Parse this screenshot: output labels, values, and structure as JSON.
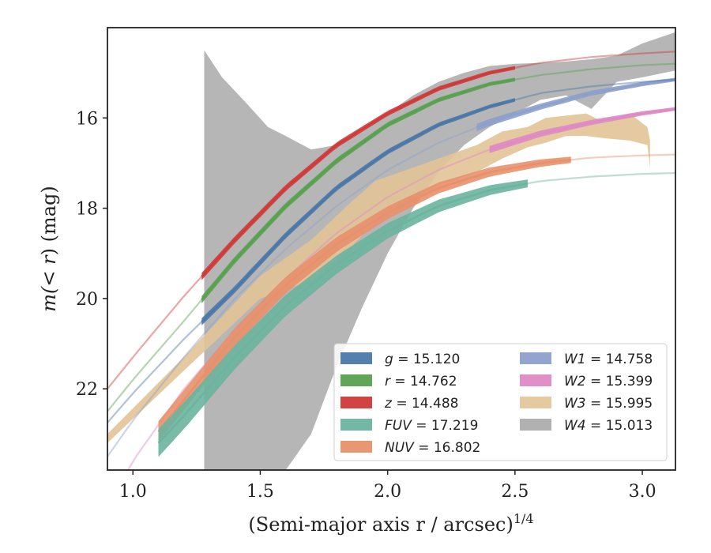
{
  "chart_data": {
    "type": "area",
    "xlabel": "(Semi-major axis r / arcsec)",
    "xlabel_exponent": "1/4",
    "ylabel": "m(< r) (mag)",
    "ylabel_prefix": "m(",
    "ylabel_var": "< r",
    "ylabel_suffix": ") (mag)",
    "xlim": [
      0.9,
      3.13
    ],
    "ylim": [
      23.8,
      14.0
    ],
    "y_inverted": true,
    "xticks": [
      "1.0",
      "1.5",
      "2.0",
      "2.5",
      "3.0"
    ],
    "xtick_values": [
      1.0,
      1.5,
      2.0,
      2.5,
      3.0
    ],
    "yticks": [
      "16",
      "18",
      "20",
      "22"
    ],
    "ytick_values": [
      16,
      18,
      20,
      22
    ],
    "grid": false,
    "legend_location": "lower-right",
    "legend_columns": 2,
    "series": [
      {
        "name": "g = 15.120",
        "label_var": "g",
        "label_value": "15.120",
        "color": "#4c78a8",
        "kind": "curve",
        "m_inf": 15.12,
        "x_start": 0.9,
        "x_solid": [
          1.27,
          2.5
        ],
        "band_half_width": 0.05,
        "x": [
          0.9,
          1.0,
          1.2,
          1.4,
          1.6,
          1.8,
          2.0,
          2.2,
          2.4,
          2.6,
          2.8,
          3.0,
          3.13
        ],
        "y": [
          22.75,
          22.1,
          20.9,
          19.8,
          18.6,
          17.55,
          16.75,
          16.15,
          15.75,
          15.45,
          15.3,
          15.2,
          15.15
        ]
      },
      {
        "name": "r = 14.762",
        "label_var": "r",
        "label_value": "14.762",
        "color": "#59a14f",
        "kind": "curve",
        "m_inf": 14.762,
        "x_start": 0.9,
        "x_solid": [
          1.27,
          2.5
        ],
        "band_half_width": 0.05,
        "x": [
          0.9,
          1.0,
          1.2,
          1.4,
          1.6,
          1.8,
          2.0,
          2.2,
          2.4,
          2.6,
          2.8,
          3.0,
          3.13
        ],
        "y": [
          22.5,
          21.8,
          20.5,
          19.15,
          17.95,
          16.95,
          16.15,
          15.6,
          15.25,
          15.05,
          14.92,
          14.83,
          14.8
        ]
      },
      {
        "name": "z = 14.488",
        "label_var": "z",
        "label_value": "14.488",
        "color": "#d03a3a",
        "kind": "curve",
        "m_inf": 14.488,
        "x_start": 0.9,
        "x_solid": [
          1.27,
          2.5
        ],
        "band_half_width": 0.05,
        "x": [
          0.9,
          1.0,
          1.2,
          1.4,
          1.6,
          1.8,
          2.0,
          2.2,
          2.4,
          2.6,
          2.8,
          3.0,
          3.13
        ],
        "y": [
          22.0,
          21.3,
          19.95,
          18.7,
          17.55,
          16.6,
          15.9,
          15.35,
          15.0,
          14.78,
          14.65,
          14.57,
          14.53
        ]
      },
      {
        "name": "FUV = 17.219",
        "label_var": "FUV",
        "label_value": "17.219",
        "color": "#6bb49f",
        "kind": "curve",
        "m_inf": 17.219,
        "x_start": 1.1,
        "x_solid": [
          1.1,
          2.55
        ],
        "band_half_width": 0.28,
        "x": [
          1.1,
          1.2,
          1.4,
          1.6,
          1.8,
          2.0,
          2.2,
          2.4,
          2.6,
          2.8,
          3.0,
          3.13
        ],
        "y": [
          23.2,
          22.6,
          21.3,
          20.15,
          19.25,
          18.5,
          17.95,
          17.6,
          17.4,
          17.3,
          17.24,
          17.22
        ]
      },
      {
        "name": "NUV = 16.802",
        "label_var": "NUV",
        "label_value": "16.802",
        "color": "#e8906c",
        "kind": "curve",
        "m_inf": 16.802,
        "x_start": 1.1,
        "x_solid": [
          1.1,
          2.72
        ],
        "band_half_width": 0.2,
        "x": [
          1.1,
          1.2,
          1.4,
          1.6,
          1.8,
          2.0,
          2.2,
          2.4,
          2.6,
          2.8,
          3.0,
          3.13
        ],
        "y": [
          22.95,
          22.25,
          20.85,
          19.7,
          18.8,
          18.1,
          17.55,
          17.2,
          17.0,
          16.88,
          16.83,
          16.81
        ]
      },
      {
        "name": "W1 = 14.758",
        "label_var": "W1",
        "label_value": "14.758",
        "color": "#8da0cb",
        "kind": "curve",
        "m_inf": 14.758,
        "x_start": 0.9,
        "x_solid": [
          2.35,
          3.13
        ],
        "band_half_width": 0.05,
        "x": [
          0.9,
          1.0,
          1.2,
          1.4,
          1.6,
          1.8,
          2.0,
          2.2,
          2.4,
          2.6,
          2.8,
          3.0,
          3.13
        ],
        "y": [
          23.5,
          22.7,
          21.3,
          20.0,
          18.9,
          17.95,
          17.15,
          16.55,
          16.1,
          15.75,
          15.45,
          15.25,
          15.15
        ]
      },
      {
        "name": "W2 = 15.399",
        "label_var": "W2",
        "label_value": "15.399",
        "color": "#de8ac3",
        "kind": "curve",
        "m_inf": 15.399,
        "x_start": 0.98,
        "x_solid": [
          2.4,
          3.13
        ],
        "band_half_width": 0.05,
        "x": [
          0.98,
          1.0,
          1.2,
          1.4,
          1.6,
          1.8,
          2.0,
          2.2,
          2.4,
          2.6,
          2.8,
          3.0,
          3.13
        ],
        "y": [
          23.8,
          23.6,
          22.0,
          20.7,
          19.55,
          18.55,
          17.75,
          17.15,
          16.7,
          16.35,
          16.1,
          15.9,
          15.8
        ]
      },
      {
        "name": "W3 = 15.995",
        "label_var": "W3",
        "label_value": "15.995",
        "color": "#e2c497",
        "kind": "band",
        "x": [
          0.9,
          1.2,
          1.5,
          1.7,
          1.85,
          1.95,
          2.05,
          2.2,
          2.35,
          2.45,
          2.55,
          2.62,
          2.7,
          2.78,
          2.85,
          2.95,
          3.02,
          3.03
        ],
        "y_upper": [
          23.0,
          21.3,
          19.5,
          18.7,
          17.9,
          17.4,
          17.2,
          16.9,
          16.6,
          16.3,
          16.2,
          16.0,
          15.95,
          15.9,
          16.1,
          15.9,
          16.2,
          16.5
        ],
        "y_lower": [
          23.2,
          21.6,
          20.0,
          19.6,
          18.9,
          18.3,
          17.9,
          17.5,
          17.2,
          16.9,
          16.65,
          16.55,
          16.4,
          16.4,
          16.45,
          16.5,
          16.6,
          17.1
        ]
      },
      {
        "name": "W4 = 15.013",
        "label_var": "W4",
        "label_value": "15.013",
        "color": "#a9a9a9",
        "kind": "band",
        "x": [
          1.28,
          1.35,
          1.45,
          1.53,
          1.6,
          1.7,
          1.8,
          1.9,
          2.0,
          2.1,
          2.2,
          2.3,
          2.4,
          2.5,
          2.6,
          2.7,
          2.8,
          2.9,
          3.0,
          3.13
        ],
        "y_upper": [
          14.5,
          15.1,
          15.7,
          16.2,
          16.4,
          16.7,
          16.6,
          16.3,
          15.9,
          15.5,
          15.2,
          15.0,
          14.85,
          14.8,
          14.78,
          14.75,
          14.7,
          14.62,
          14.35,
          14.1
        ],
        "y_lower": [
          23.8,
          23.8,
          23.8,
          23.8,
          23.8,
          23.0,
          21.5,
          20.2,
          19.0,
          18.0,
          17.2,
          16.6,
          16.2,
          15.9,
          15.6,
          15.5,
          15.8,
          15.2,
          15.1,
          14.95
        ]
      }
    ]
  }
}
